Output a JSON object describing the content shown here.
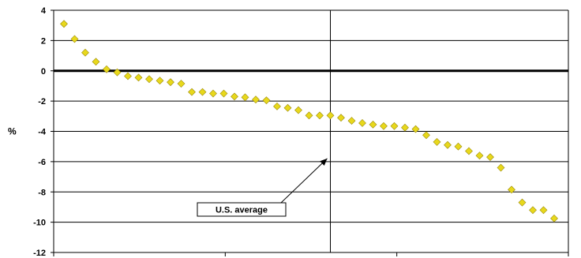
{
  "chart_data": {
    "type": "scatter",
    "ylabel": "%",
    "ylim": [
      -12,
      4
    ],
    "yticks": [
      4,
      2,
      0,
      -2,
      -4,
      -6,
      -8,
      -10,
      -12
    ],
    "xlim": [
      0,
      51
    ],
    "grid": true,
    "marker": "diamond",
    "marker_color": "#E8D81C",
    "marker_stroke": "#9a8a0a",
    "reference_line_y": 0,
    "vertical_line_x": 26,
    "annotation": {
      "text": "U.S. average",
      "target": [
        26,
        -3.5
      ]
    },
    "values": [
      3.1,
      2.1,
      1.2,
      0.6,
      0.1,
      -0.1,
      -0.35,
      -0.45,
      -0.55,
      -0.65,
      -0.75,
      -0.85,
      -1.4,
      -1.4,
      -1.5,
      -1.5,
      -1.7,
      -1.75,
      -1.9,
      -1.95,
      -2.35,
      -2.45,
      -2.6,
      -2.95,
      -2.95,
      -2.95,
      -3.1,
      -3.3,
      -3.45,
      -3.55,
      -3.65,
      -3.65,
      -3.75,
      -3.85,
      -4.25,
      -4.7,
      -4.9,
      -5.0,
      -5.3,
      -5.6,
      -5.7,
      -6.4,
      -7.85,
      -8.7,
      -9.2,
      -9.2,
      -9.75
    ]
  }
}
